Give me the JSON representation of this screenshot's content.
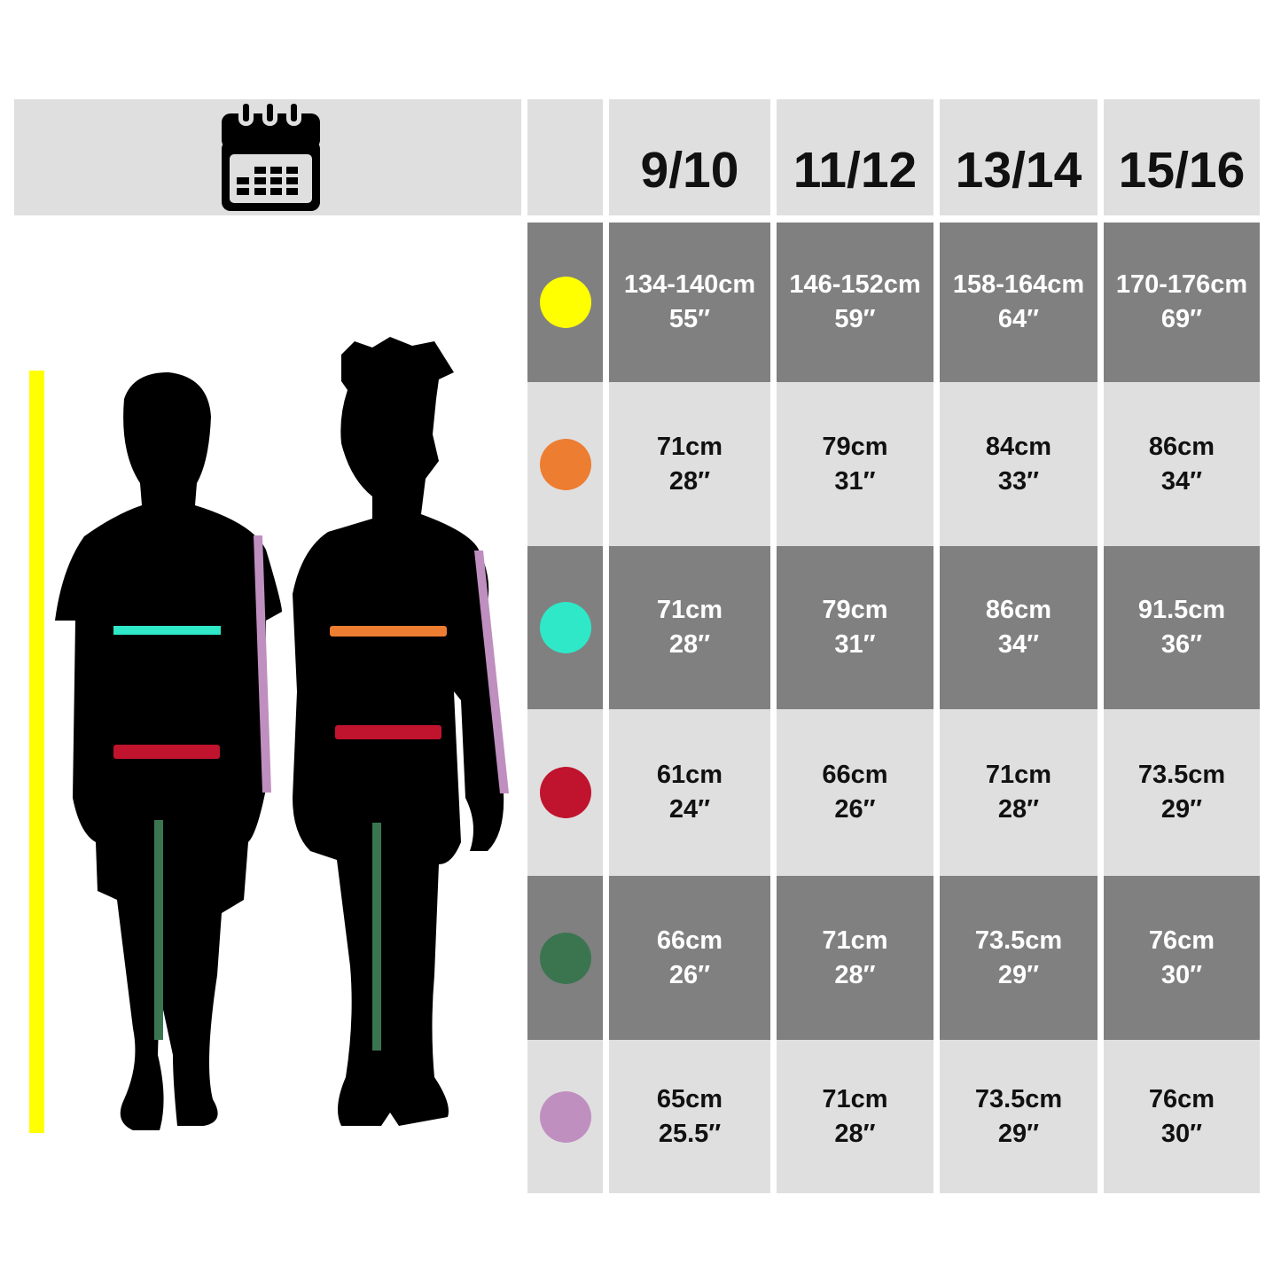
{
  "header": {
    "sizes": [
      "9/10",
      "11/12",
      "13/14",
      "15/16"
    ],
    "icon": "calendar-icon"
  },
  "rows": [
    {
      "measure_color": "#ffff00",
      "cells": [
        [
          "134-140cm",
          "55″"
        ],
        [
          "146-152cm",
          "59″"
        ],
        [
          "158-164cm",
          "64″"
        ],
        [
          "170-176cm",
          "69″"
        ]
      ]
    },
    {
      "measure_color": "#ed7d31",
      "cells": [
        [
          "71cm",
          "28″"
        ],
        [
          "79cm",
          "31″"
        ],
        [
          "84cm",
          "33″"
        ],
        [
          "86cm",
          "34″"
        ]
      ]
    },
    {
      "measure_color": "#2ee8c8",
      "cells": [
        [
          "71cm",
          "28″"
        ],
        [
          "79cm",
          "31″"
        ],
        [
          "86cm",
          "34″"
        ],
        [
          "91.5cm",
          "36″"
        ]
      ]
    },
    {
      "measure_color": "#c0142e",
      "cells": [
        [
          "61cm",
          "24″"
        ],
        [
          "66cm",
          "26″"
        ],
        [
          "71cm",
          "28″"
        ],
        [
          "73.5cm",
          "29″"
        ]
      ]
    },
    {
      "measure_color": "#3a7550",
      "cells": [
        [
          "66cm",
          "26″"
        ],
        [
          "71cm",
          "28″"
        ],
        [
          "73.5cm",
          "29″"
        ],
        [
          "76cm",
          "30″"
        ]
      ]
    },
    {
      "measure_color": "#bf8fc0",
      "cells": [
        [
          "65cm",
          "25.5″"
        ],
        [
          "71cm",
          "28″"
        ],
        [
          "73.5cm",
          "29″"
        ],
        [
          "76cm",
          "30″"
        ]
      ]
    }
  ]
}
